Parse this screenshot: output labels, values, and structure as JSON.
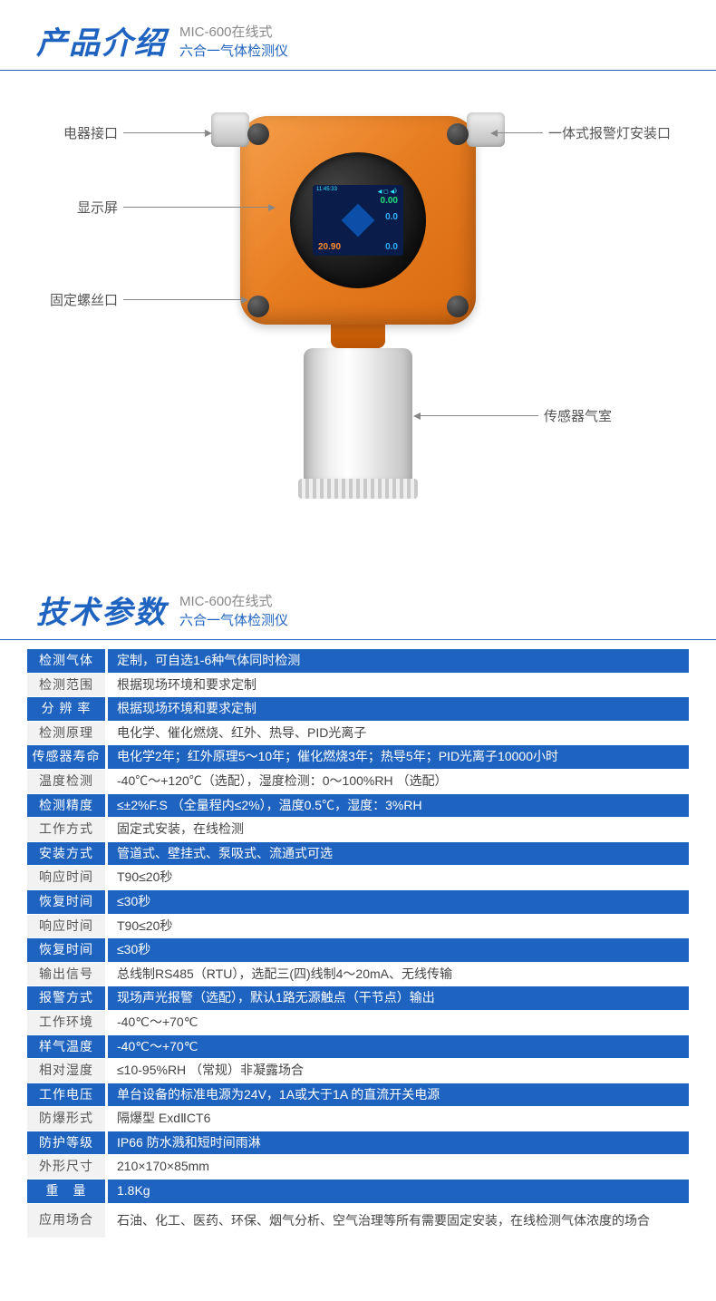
{
  "colors": {
    "blue": "#1f63c0",
    "headerBorder": "#1f63c0",
    "rowOddBg": "#1f63c0",
    "rowOddText": "#ffffff",
    "rowEvenBg": "#f2f2f2",
    "rowEvenLabelText": "#555555",
    "rowEvenValueText": "#444444",
    "titleSize": "34px",
    "subSize": "15px"
  },
  "intro": {
    "title": "产品介绍",
    "subTop": "MIC-600在线式",
    "subBot": "六合一气体检测仪"
  },
  "callouts": {
    "elecPort": "电器接口",
    "display": "显示屏",
    "screwPort": "固定螺丝口",
    "alarmPort": "一体式报警灯安装口",
    "sensorChamber": "传感器气室"
  },
  "screen": {
    "val1": "0.00",
    "val2": "0.0",
    "val3": "20.90",
    "val4": "0.0"
  },
  "specHeader": {
    "title": "技术参数",
    "subTop": "MIC-600在线式",
    "subBot": "六合一气体检测仪"
  },
  "specs": [
    {
      "label": "检测气体",
      "value": "定制，可自选1-6种气体同时检测"
    },
    {
      "label": "检测范围",
      "value": "根据现场环境和要求定制"
    },
    {
      "label": "分 辨 率",
      "value": "根据现场环境和要求定制"
    },
    {
      "label": "检测原理",
      "value": "电化学、催化燃烧、红外、热导、PID光离子"
    },
    {
      "label": "传感器寿命",
      "value": "电化学2年；红外原理5～10年；催化燃烧3年；热导5年；PID光离子10000小时"
    },
    {
      "label": "温度检测",
      "value": "-40℃～+120℃（选配），湿度检测：0～100%RH （选配）"
    },
    {
      "label": "检测精度",
      "value": "≤±2%F.S （全量程内≤2%），温度0.5℃，湿度：3%RH"
    },
    {
      "label": "工作方式",
      "value": "固定式安装，在线检测"
    },
    {
      "label": "安装方式",
      "value": "管道式、壁挂式、泵吸式、流通式可选"
    },
    {
      "label": "响应时间",
      "value": "T90≤20秒"
    },
    {
      "label": "恢复时间",
      "value": "≤30秒"
    },
    {
      "label": "响应时间",
      "value": "T90≤20秒"
    },
    {
      "label": "恢复时间",
      "value": "≤30秒"
    },
    {
      "label": "输出信号",
      "value": "总线制RS485（RTU），选配三(四)线制4～20mA、无线传输"
    },
    {
      "label": "报警方式",
      "value": "现场声光报警（选配），默认1路无源触点（干节点）输出"
    },
    {
      "label": "工作环境",
      "value": "-40℃～+70℃"
    },
    {
      "label": "样气温度",
      "value": "-40℃～+70℃"
    },
    {
      "label": "相对湿度",
      "value": "≤10-95%RH （常规）非凝露场合"
    },
    {
      "label": "工作电压",
      "value": "单台设备的标准电源为24V，1A或大于1A 的直流开关电源"
    },
    {
      "label": "防爆形式",
      "value": "隔爆型  ExdⅡCT6"
    },
    {
      "label": "防护等级",
      "value": "IP66 防水溅和短时间雨淋"
    },
    {
      "label": "外形尺寸",
      "value": "210×170×85mm"
    },
    {
      "label": "重　量",
      "value": "1.8Kg"
    },
    {
      "label": "应用场合",
      "value": "石油、化工、医药、环保、烟气分析、空气治理等所有需要固定安装，在线检测气体浓度的场合",
      "tall": true
    }
  ]
}
